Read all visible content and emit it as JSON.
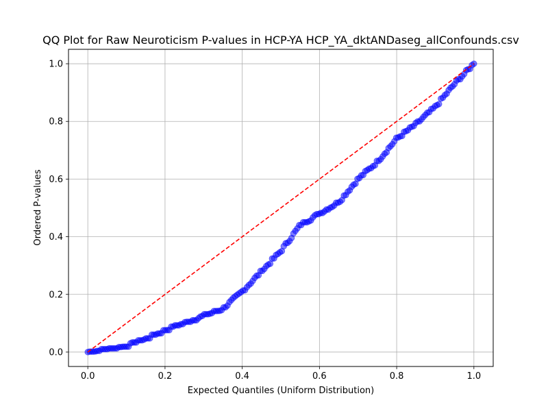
{
  "chart_data": {
    "type": "scatter",
    "title": "QQ Plot for Raw Neuroticism P-values in HCP-YA HCP_YA_dktANDaseg_allConfounds.csv",
    "xlabel": "Expected Quantiles (Uniform Distribution)",
    "ylabel": "Ordered P-values",
    "xlim": [
      -0.05,
      1.05
    ],
    "ylim": [
      -0.05,
      1.05
    ],
    "x_ticks": [
      "0.0",
      "0.2",
      "0.4",
      "0.6",
      "0.8",
      "1.0"
    ],
    "y_ticks": [
      "0.0",
      "0.2",
      "0.4",
      "0.6",
      "0.8",
      "1.0"
    ],
    "grid": true,
    "point_count": 200,
    "series": [
      {
        "color": "#0000ff",
        "kind": "points",
        "anchor_curve": [
          [
            0.0,
            0.0
          ],
          [
            0.05,
            0.008
          ],
          [
            0.1,
            0.02
          ],
          [
            0.15,
            0.045
          ],
          [
            0.2,
            0.075
          ],
          [
            0.25,
            0.1
          ],
          [
            0.3,
            0.125
          ],
          [
            0.35,
            0.15
          ],
          [
            0.4,
            0.21
          ],
          [
            0.45,
            0.28
          ],
          [
            0.5,
            0.35
          ],
          [
            0.55,
            0.44
          ],
          [
            0.6,
            0.48
          ],
          [
            0.65,
            0.52
          ],
          [
            0.7,
            0.6
          ],
          [
            0.75,
            0.66
          ],
          [
            0.8,
            0.74
          ],
          [
            0.85,
            0.79
          ],
          [
            0.9,
            0.85
          ],
          [
            0.95,
            0.93
          ],
          [
            1.0,
            1.0
          ]
        ]
      },
      {
        "color": "#ff0000",
        "kind": "reference-line",
        "style": "dashed",
        "line": [
          [
            0.0,
            0.0
          ],
          [
            1.0,
            1.0
          ]
        ]
      }
    ]
  }
}
